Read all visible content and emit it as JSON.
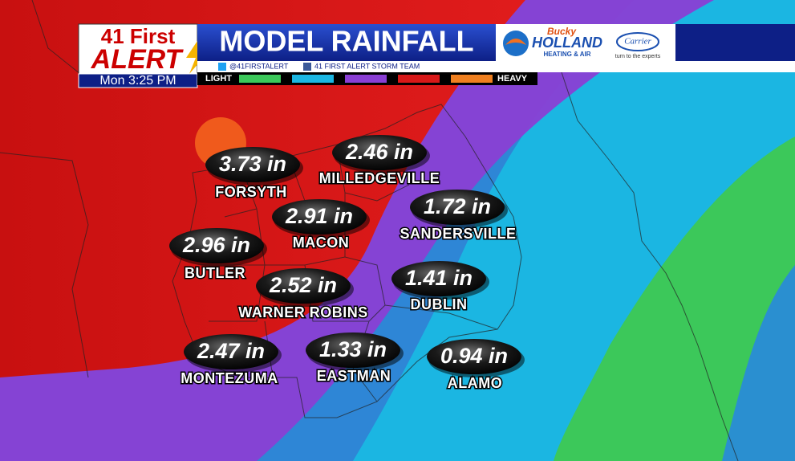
{
  "header": {
    "brand_line1": "41 First",
    "brand_line2": "ALERT",
    "timestamp": "Mon 3:25 PM",
    "title": "MODEL RAINFALL",
    "sponsor": {
      "name_script": "Bucky",
      "name": "HOLLAND",
      "tagline": "HEATING & AIR",
      "partner": "Carrier",
      "partner_tagline": "turn to the experts"
    },
    "social": {
      "twitter": "@41FIRSTALERT",
      "facebook": "41 FIRST ALERT STORM TEAM"
    }
  },
  "legend": {
    "low": "LIGHT",
    "high": "HEAVY"
  },
  "cities": [
    {
      "name": "FORSYTH",
      "amount": "3.73 in"
    },
    {
      "name": "MILLEDGEVILLE",
      "amount": "2.46 in"
    },
    {
      "name": "MACON",
      "amount": "2.91 in"
    },
    {
      "name": "SANDERSVILLE",
      "amount": "1.72 in"
    },
    {
      "name": "BUTLER",
      "amount": "2.96 in"
    },
    {
      "name": "WARNER ROBINS",
      "amount": "2.52 in"
    },
    {
      "name": "DUBLIN",
      "amount": "1.41 in"
    },
    {
      "name": "MONTEZUMA",
      "amount": "2.47 in"
    },
    {
      "name": "EASTMAN",
      "amount": "1.33 in"
    },
    {
      "name": "ALAMO",
      "amount": "0.94 in"
    }
  ]
}
